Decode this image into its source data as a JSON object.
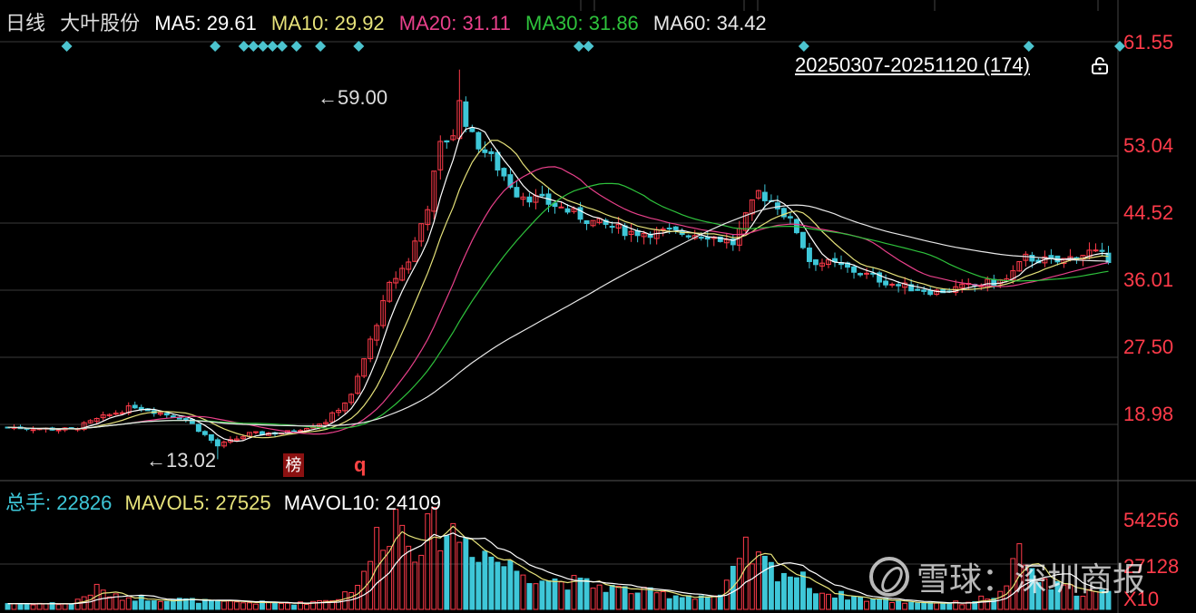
{
  "header": {
    "period": "日线",
    "stock_name": "大叶股份",
    "ma5": {
      "label": "MA5: 29.61",
      "color": "#ffffff"
    },
    "ma10": {
      "label": "MA10: 29.92",
      "color": "#e6e27a"
    },
    "ma20": {
      "label": "MA20: 31.11",
      "color": "#e8408a"
    },
    "ma30": {
      "label": "MA30: 31.86",
      "color": "#2ec23c"
    },
    "ma60": {
      "label": "MA60: 34.42",
      "color": "#e8e8e8"
    }
  },
  "range_label": "20250307-20251120 (174)",
  "volume_header": {
    "total": {
      "label": "总手: 22826",
      "color": "#3ec7d8"
    },
    "mavol5": {
      "label": "MAVOL5: 27525",
      "color": "#e6e27a"
    },
    "mavol10": {
      "label": "MAVOL10: 24109",
      "color": "#ffffff"
    }
  },
  "price_ticks": [
    "61.55",
    "53.04",
    "44.52",
    "36.01",
    "27.50",
    "18.98"
  ],
  "volume_ticks": [
    "54256",
    "27128",
    "X10"
  ],
  "high_label": "59.00",
  "low_label": "13.02",
  "markers": {
    "badge": "榜",
    "q": "q"
  },
  "watermark": "雪球：深圳商报",
  "colors": {
    "up": "#ff3b4a",
    "down": "#3ec7d8",
    "grid": "#3a3a3a",
    "background": "#000000"
  },
  "chart_data": {
    "type": "candlestick",
    "count": 174,
    "ylim": [
      10.5,
      64
    ],
    "volume_ylim": [
      0,
      54256
    ],
    "volume_unit": "X10",
    "high": 59.0,
    "low": 13.02,
    "close_keypoints": [
      [
        0,
        16.8
      ],
      [
        10,
        16.5
      ],
      [
        15,
        18.0
      ],
      [
        20,
        19.3
      ],
      [
        24,
        18.5
      ],
      [
        28,
        17.8
      ],
      [
        33,
        14.6
      ],
      [
        38,
        16.0
      ],
      [
        44,
        16.2
      ],
      [
        50,
        17.5
      ],
      [
        54,
        20.5
      ],
      [
        57,
        27.0
      ],
      [
        60,
        33.5
      ],
      [
        63,
        36.5
      ],
      [
        66,
        43.0
      ],
      [
        68,
        50.0
      ],
      [
        70,
        51.5
      ],
      [
        71,
        55.0
      ],
      [
        73,
        51.0
      ],
      [
        76,
        48.5
      ],
      [
        80,
        44.5
      ],
      [
        86,
        43.0
      ],
      [
        92,
        41.0
      ],
      [
        98,
        39.8
      ],
      [
        104,
        39.8
      ],
      [
        110,
        39.5
      ],
      [
        114,
        38.5
      ],
      [
        118,
        44.5
      ],
      [
        121,
        43.0
      ],
      [
        124,
        40.0
      ],
      [
        126,
        36.5
      ],
      [
        130,
        36.0
      ],
      [
        140,
        33.5
      ],
      [
        146,
        32.8
      ],
      [
        152,
        33.5
      ],
      [
        157,
        34.2
      ],
      [
        160,
        36.8
      ],
      [
        165,
        36.3
      ],
      [
        170,
        37.5
      ],
      [
        174,
        36.5
      ]
    ],
    "volume_keypoints": [
      [
        0,
        3200
      ],
      [
        10,
        3000
      ],
      [
        14,
        11000
      ],
      [
        17,
        6500
      ],
      [
        22,
        6000
      ],
      [
        28,
        5000
      ],
      [
        33,
        3800
      ],
      [
        40,
        3500
      ],
      [
        46,
        3200
      ],
      [
        52,
        6000
      ],
      [
        56,
        17000
      ],
      [
        58,
        38000
      ],
      [
        61,
        50000
      ],
      [
        64,
        36000
      ],
      [
        68,
        44000
      ],
      [
        71,
        40000
      ],
      [
        74,
        33000
      ],
      [
        78,
        24000
      ],
      [
        85,
        16000
      ],
      [
        92,
        13000
      ],
      [
        98,
        10000
      ],
      [
        105,
        7500
      ],
      [
        112,
        7000
      ],
      [
        116,
        30000
      ],
      [
        120,
        22000
      ],
      [
        124,
        18000
      ],
      [
        128,
        9000
      ],
      [
        135,
        5500
      ],
      [
        142,
        3800
      ],
      [
        150,
        3400
      ],
      [
        156,
        8000
      ],
      [
        159,
        28000
      ],
      [
        163,
        13000
      ],
      [
        168,
        10000
      ],
      [
        174,
        8000
      ]
    ]
  }
}
